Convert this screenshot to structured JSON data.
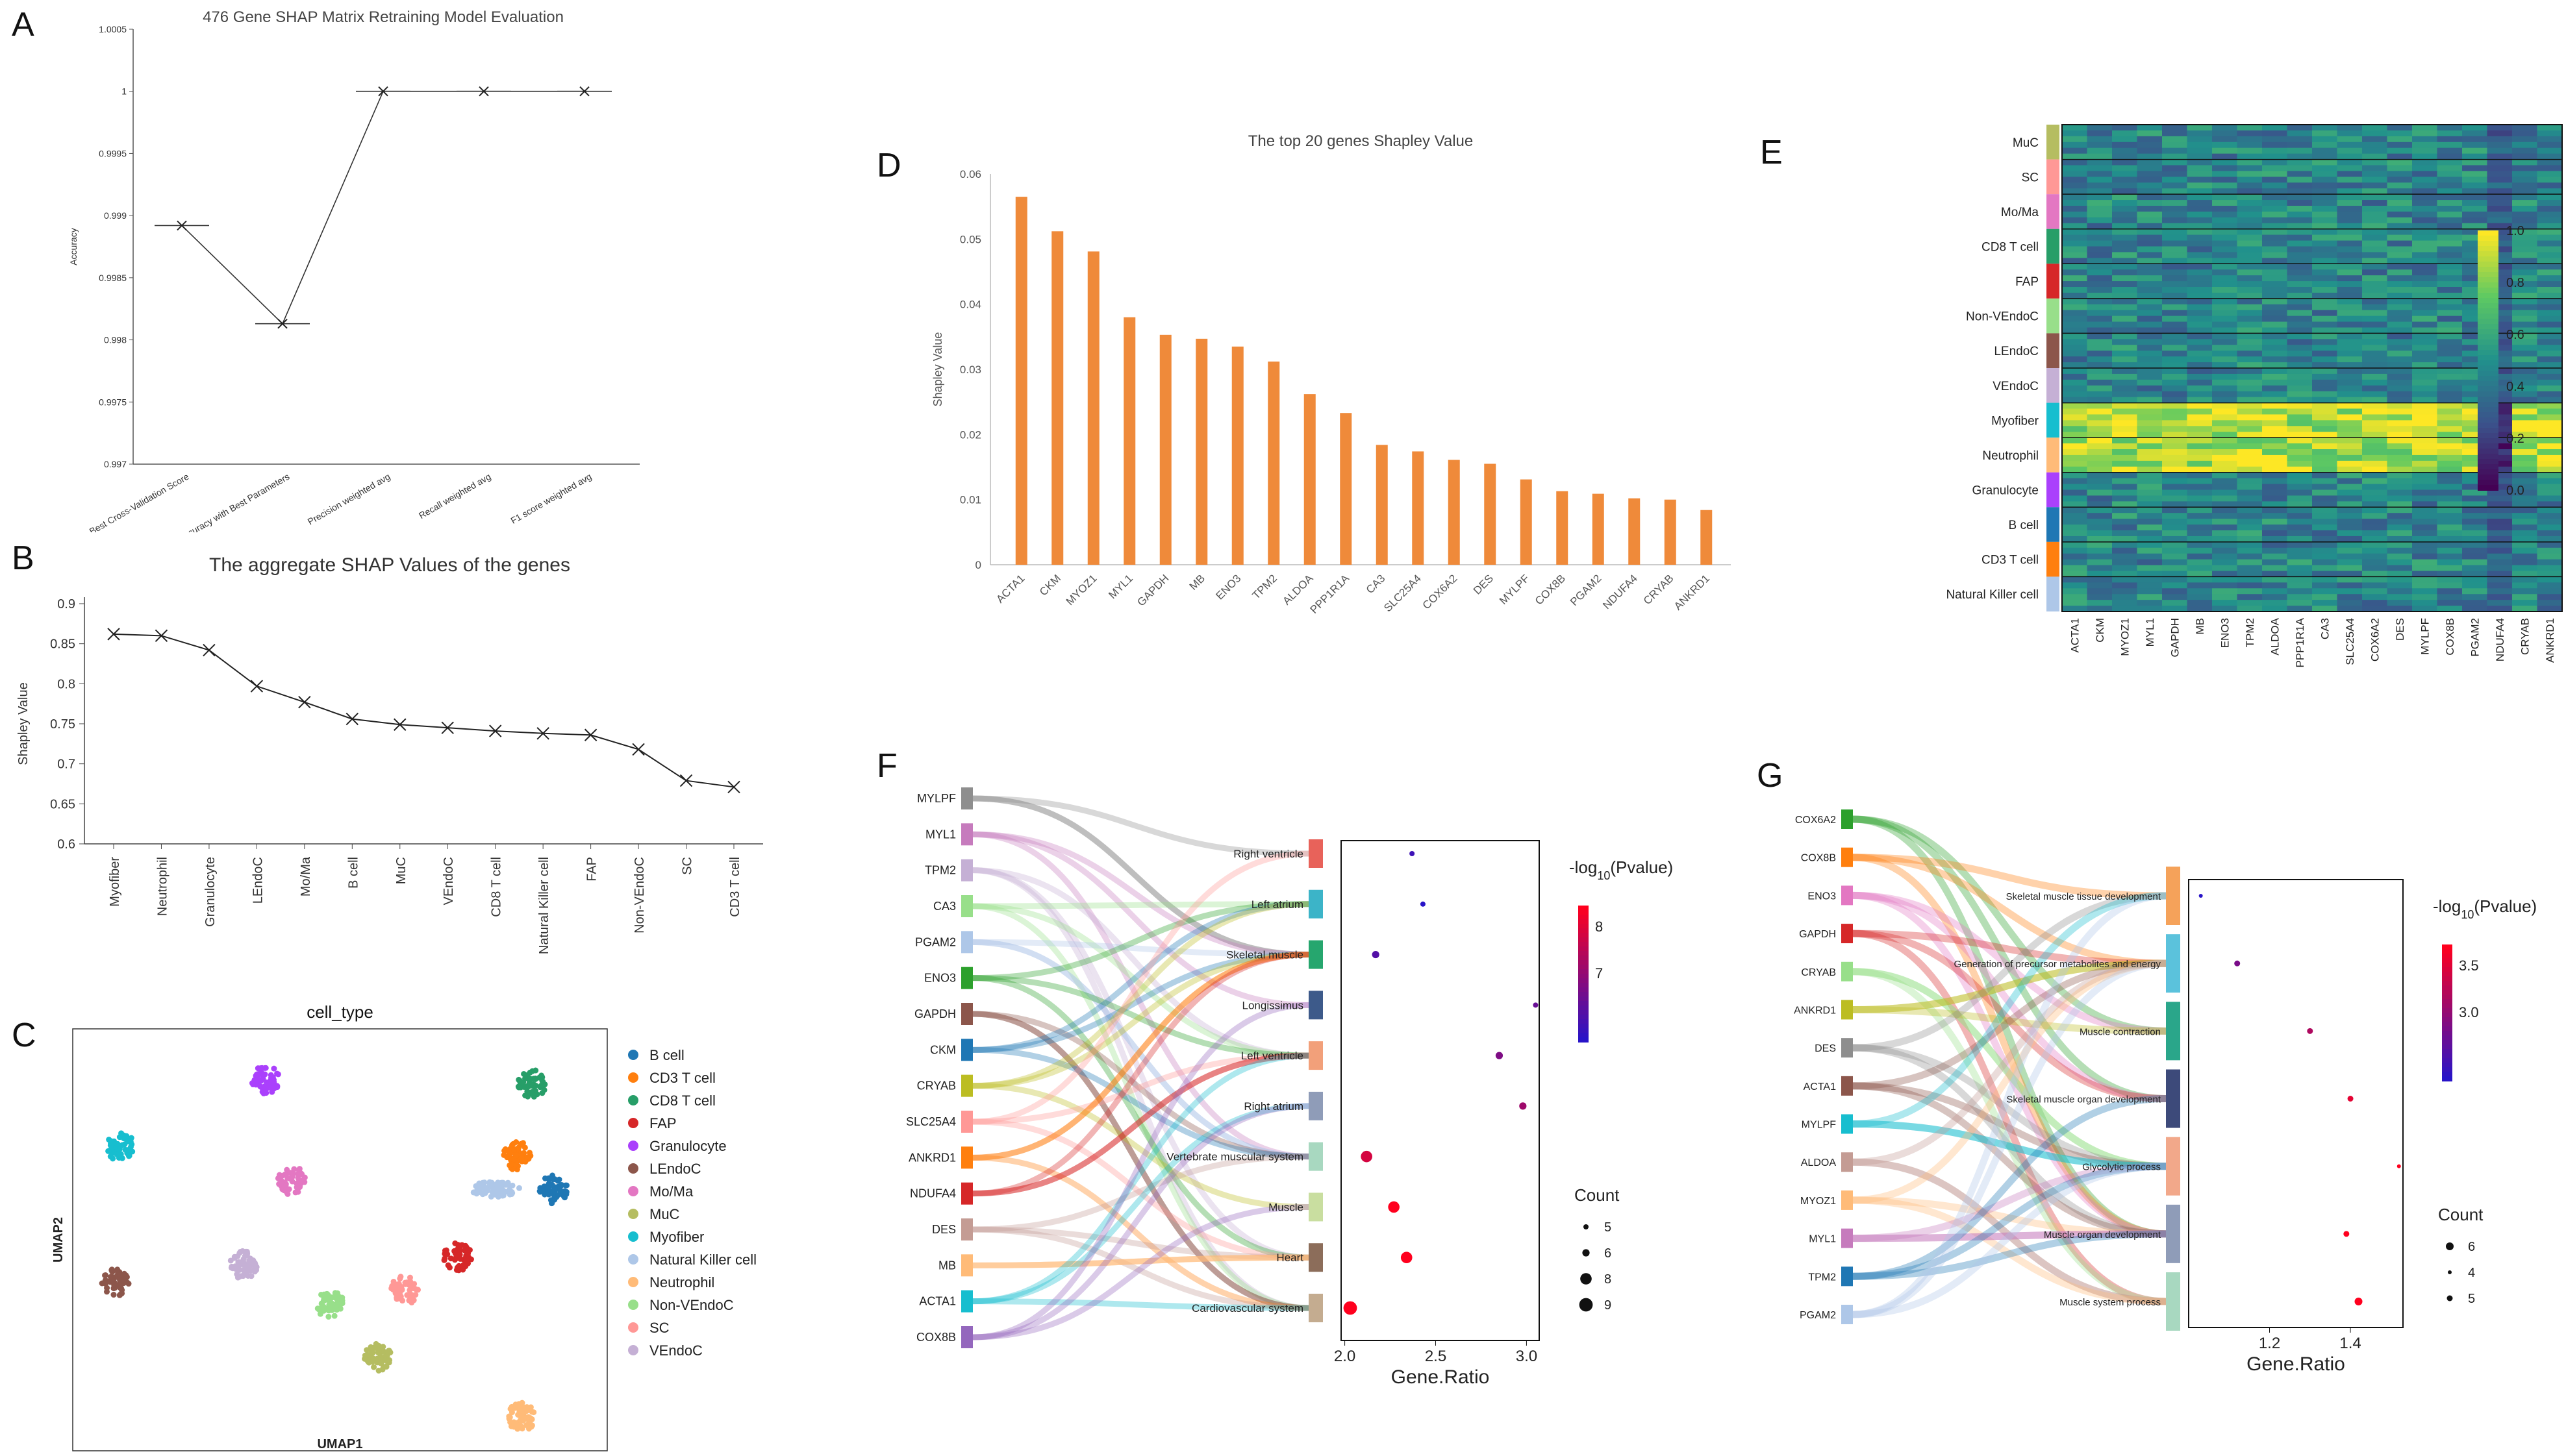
{
  "panels": {
    "A": {
      "label": "A",
      "title": "476 Gene SHAP Matrix Retraining Model Evaluation",
      "ylabel": "Accuracy",
      "yticks": [
        "0.997",
        "0.9975",
        "0.998",
        "0.9985",
        "0.999",
        "0.9995",
        "1",
        "1.0005"
      ],
      "categories": [
        "Best Cross-Validation Score",
        "Accuracy with Best Parameters",
        "Precision weighted avg",
        "Recall weighted avg",
        "F1 score weighted avg"
      ]
    },
    "B": {
      "label": "B",
      "title": "The aggregate SHAP Values of the genes",
      "ylabel": "Shapley Value",
      "yticks": [
        "0.6",
        "0.65",
        "0.7",
        "0.75",
        "0.8",
        "0.85",
        "0.9"
      ],
      "categories": [
        "Myofiber",
        "Neutrophil",
        "Granulocyte",
        "LEndoC",
        "Mo/Ma",
        "B cell",
        "MuC",
        "VEndoC",
        "CD8 T cell",
        "Natural Killer cell",
        "FAP",
        "Non-VEndoC",
        "SC",
        "CD3 T cell"
      ]
    },
    "C": {
      "label": "C",
      "title": "cell_type",
      "xlabel": "UMAP1",
      "ylabel": "UMAP2"
    },
    "D": {
      "label": "D",
      "title": "The top 20 genes Shapley Value",
      "ylabel": "Shapley Value",
      "yticks": [
        "0",
        "0.01",
        "0.02",
        "0.03",
        "0.04",
        "0.05",
        "0.06"
      ]
    },
    "E": {
      "label": "E",
      "colorbar_ticks": [
        "0.0",
        "0.2",
        "0.4",
        "0.6",
        "0.8",
        "1.0"
      ]
    },
    "F": {
      "label": "F",
      "count_title": "Count",
      "count_vals": [
        "5",
        "6",
        "8",
        "9"
      ],
      "xticks": [
        "2.0",
        "2.5",
        "3.0"
      ],
      "colorbar_ticks": [
        "8",
        "7"
      ]
    },
    "G": {
      "label": "G",
      "count_title": "Count",
      "count_vals": [
        "6",
        "4",
        "5"
      ],
      "xticks": [
        "1.2",
        "1.4"
      ],
      "colorbar_ticks": [
        "3.5",
        "3.0"
      ]
    }
  },
  "pvalue_title_prefix": "-log",
  "pvalue_title_sub": "10",
  "pvalue_title_suffix": "(Pvalue)",
  "gene_ratio_label": "Gene.Ratio",
  "chart_data": [
    {
      "panel": "A",
      "type": "line",
      "title": "476 Gene SHAP Matrix Retraining Model Evaluation",
      "ylabel": "Accuracy",
      "categories": [
        "Best Cross-Validation Score",
        "Accuracy with Best Parameters",
        "Precision weighted avg",
        "Recall weighted avg",
        "F1 score weighted avg"
      ],
      "values": [
        0.99892,
        0.99813,
        1.0,
        1.0,
        1.0
      ],
      "ylim": [
        0.997,
        1.0005
      ]
    },
    {
      "panel": "B",
      "type": "line",
      "title": "The aggregate SHAP Values of the genes",
      "ylabel": "Shapley Value",
      "categories": [
        "Myofiber",
        "Neutrophil",
        "Granulocyte",
        "LEndoC",
        "Mo/Ma",
        "B cell",
        "MuC",
        "VEndoC",
        "CD8 T cell",
        "Natural Killer cell",
        "FAP",
        "Non-VEndoC",
        "SC",
        "CD3 T cell"
      ],
      "values": [
        0.862,
        0.86,
        0.842,
        0.797,
        0.777,
        0.756,
        0.749,
        0.745,
        0.741,
        0.738,
        0.736,
        0.718,
        0.679,
        0.671
      ],
      "ylim": [
        0.6,
        0.9
      ]
    },
    {
      "panel": "C",
      "type": "scatter",
      "title": "cell_type",
      "xlabel": "UMAP1",
      "ylabel": "UMAP2",
      "legend": [
        {
          "name": "B cell",
          "color": "#1f77b4"
        },
        {
          "name": "CD3 T cell",
          "color": "#ff7f0e"
        },
        {
          "name": "CD8 T cell",
          "color": "#279e68"
        },
        {
          "name": "FAP",
          "color": "#d62728"
        },
        {
          "name": "Granulocyte",
          "color": "#aa40fc"
        },
        {
          "name": "LEndoC",
          "color": "#8c564b"
        },
        {
          "name": "Mo/Ma",
          "color": "#e377c2"
        },
        {
          "name": "MuC",
          "color": "#b5bd61"
        },
        {
          "name": "Myofiber",
          "color": "#17becf"
        },
        {
          "name": "Natural Killer cell",
          "color": "#aec7e8"
        },
        {
          "name": "Neutrophil",
          "color": "#ffbb78"
        },
        {
          "name": "Non-VEndoC",
          "color": "#98df8a"
        },
        {
          "name": "SC",
          "color": "#ff9896"
        },
        {
          "name": "VEndoC",
          "color": "#c5b0d5"
        }
      ],
      "clusters": [
        {
          "name": "Granulocyte",
          "x": 0.36,
          "y": 0.88
        },
        {
          "name": "CD8 T cell",
          "x": 0.86,
          "y": 0.87
        },
        {
          "name": "Myofiber",
          "x": 0.09,
          "y": 0.72
        },
        {
          "name": "Mo/Ma",
          "x": 0.41,
          "y": 0.64
        },
        {
          "name": "CD3 T cell",
          "x": 0.83,
          "y": 0.7
        },
        {
          "name": "Natural Killer cell",
          "x": 0.79,
          "y": 0.62
        },
        {
          "name": "B cell",
          "x": 0.9,
          "y": 0.62
        },
        {
          "name": "FAP",
          "x": 0.72,
          "y": 0.46
        },
        {
          "name": "LEndoC",
          "x": 0.08,
          "y": 0.4
        },
        {
          "name": "VEndoC",
          "x": 0.32,
          "y": 0.44
        },
        {
          "name": "Non-VEndoC",
          "x": 0.48,
          "y": 0.35
        },
        {
          "name": "SC",
          "x": 0.62,
          "y": 0.38
        },
        {
          "name": "MuC",
          "x": 0.57,
          "y": 0.22
        },
        {
          "name": "Neutrophil",
          "x": 0.84,
          "y": 0.08
        }
      ]
    },
    {
      "panel": "D",
      "type": "bar",
      "title": "The top 20 genes Shapley Value",
      "ylabel": "Shapley Value",
      "categories": [
        "ACTA1",
        "CKM",
        "MYOZ1",
        "MYL1",
        "GAPDH",
        "MB",
        "ENO3",
        "TPM2",
        "ALDOA",
        "PPP1R1A",
        "CA3",
        "SLC25A4",
        "COX6A2",
        "DES",
        "MYLPF",
        "COX8B",
        "PGAM2",
        "NDUFA4",
        "CRYAB",
        "ANKRD1"
      ],
      "values": [
        0.0565,
        0.0512,
        0.0481,
        0.038,
        0.0353,
        0.0347,
        0.0335,
        0.0312,
        0.0262,
        0.0233,
        0.0184,
        0.0174,
        0.0161,
        0.0155,
        0.0131,
        0.0113,
        0.0109,
        0.0102,
        0.01,
        0.0084
      ],
      "ylim": [
        0,
        0.06
      ]
    },
    {
      "panel": "E",
      "type": "heatmap",
      "rows": [
        "MuC",
        "SC",
        "Mo/Ma",
        "CD8 T cell",
        "FAP",
        "Non-VEndoC",
        "LEndoC",
        "VEndoC",
        "Myofiber",
        "Neutrophil",
        "Granulocyte",
        "B cell",
        "CD3 T cell",
        "Natural Killer cell"
      ],
      "row_colors": [
        "#b5bd61",
        "#ff9896",
        "#e377c2",
        "#279e68",
        "#d62728",
        "#98df8a",
        "#8c564b",
        "#c5b0d5",
        "#17becf",
        "#ffbb78",
        "#aa40fc",
        "#1f77b4",
        "#ff7f0e",
        "#aec7e8"
      ],
      "columns": [
        "ACTA1",
        "CKM",
        "MYOZ1",
        "MYL1",
        "GAPDH",
        "MB",
        "ENO3",
        "TPM2",
        "ALDOA",
        "PPP1R1A",
        "CA3",
        "SLC25A4",
        "COX6A2",
        "DES",
        "MYLPF",
        "COX8B",
        "PGAM2",
        "NDUFA4",
        "CRYAB",
        "ANKRD1"
      ],
      "colorbar_range": [
        0.0,
        1.0
      ]
    },
    {
      "panel": "F",
      "type": "scatter",
      "genes": [
        "MYLPF",
        "MYL1",
        "TPM2",
        "CA3",
        "PGAM2",
        "ENO3",
        "GAPDH",
        "CKM",
        "CRYAB",
        "SLC25A4",
        "ANKRD1",
        "NDUFA4",
        "DES",
        "MB",
        "ACTA1",
        "COX8B"
      ],
      "terms": [
        "Right ventricle",
        "Left atrium",
        "Skeletal muscle",
        "Longissimus",
        "Left ventricle",
        "Right atrium",
        "Vertebrate muscular system",
        "Muscle",
        "Heart",
        "Cardiovascular system"
      ],
      "gene_ratio": [
        2.37,
        2.43,
        2.17,
        3.05,
        2.85,
        2.98,
        2.12,
        2.27,
        2.34,
        2.03
      ],
      "neg_log10_p": [
        7.2,
        7.0,
        7.4,
        7.6,
        7.8,
        8.1,
        8.6,
        9.0,
        9.0,
        9.0
      ],
      "count": [
        5,
        5,
        6,
        5,
        6,
        6,
        8,
        8,
        8,
        9
      ],
      "xlabel": "Gene.Ratio",
      "xlim": [
        2.0,
        3.05
      ]
    },
    {
      "panel": "G",
      "type": "scatter",
      "genes": [
        "COX6A2",
        "COX8B",
        "ENO3",
        "GAPDH",
        "CRYAB",
        "ANKRD1",
        "DES",
        "ACTA1",
        "MYLPF",
        "ALDOA",
        "MYOZ1",
        "MYL1",
        "TPM2",
        "PGAM2"
      ],
      "terms": [
        "Skeletal muscle tissue development",
        "Generation of precursor metabolites and energy",
        "Muscle contraction",
        "Skeletal muscle organ development",
        "Glycolytic process",
        "Muscle organ development",
        "Muscle system process"
      ],
      "gene_ratio": [
        1.03,
        1.12,
        1.3,
        1.4,
        1.52,
        1.39,
        1.42
      ],
      "neg_log10_p": [
        2.9,
        3.2,
        3.4,
        3.6,
        3.7,
        3.7,
        3.7
      ],
      "count": [
        4,
        5,
        5,
        5,
        4,
        5,
        6
      ],
      "xlabel": "Gene.Ratio"
    }
  ]
}
